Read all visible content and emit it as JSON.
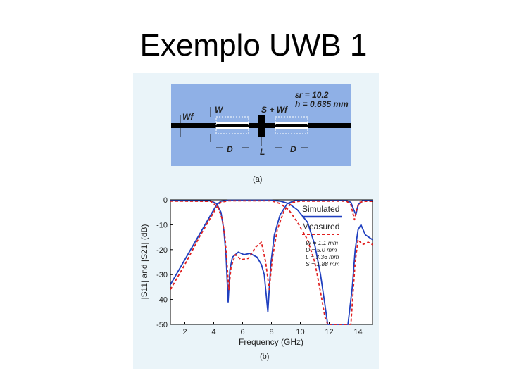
{
  "slide": {
    "title": "Exemplo UWB 1"
  },
  "figure": {
    "part_a": {
      "caption": "(a)",
      "substrate_er": "εr = 10.2",
      "substrate_h": "h = 0.635 mm",
      "labels": {
        "wf": "Wf",
        "w": "W",
        "s_wf": "S + Wf",
        "d_left": "D",
        "l": "L",
        "d_right": "D"
      },
      "colors": {
        "substrate": "#8fb0e6",
        "line": "#000000"
      }
    },
    "part_b": {
      "caption": "(b)",
      "legend_simulated": "Simulated",
      "legend_measured": "Measured",
      "params": [
        "W = 1.1 mm",
        "D = 5.0 mm",
        "L = 3.36 mm",
        "S = 1.88 mm"
      ],
      "colors": {
        "simulated": "#1f3fbf",
        "measured": "#e02020"
      }
    }
  },
  "chart_data": {
    "type": "line",
    "title": "",
    "xlabel": "Frequency (GHz)",
    "ylabel": "|S11| and |S21| (dB)",
    "xlim": [
      1,
      15
    ],
    "ylim": [
      -50,
      0
    ],
    "xticks": [
      2,
      4,
      6,
      8,
      10,
      12,
      14
    ],
    "yticks": [
      0,
      -10,
      -20,
      -30,
      -40,
      -50
    ],
    "legend": "top-right",
    "series": [
      {
        "name": "Simulated",
        "style": "solid",
        "color": "#1f3fbf",
        "curves": [
          [
            [
              1.0,
              -34
            ],
            [
              2.0,
              -24
            ],
            [
              3.0,
              -14
            ],
            [
              3.8,
              -6
            ],
            [
              4.2,
              -2
            ],
            [
              4.5,
              -0.5
            ],
            [
              5.0,
              -0.2
            ],
            [
              8.0,
              -0.2
            ],
            [
              8.6,
              -0.5
            ],
            [
              9.2,
              -1.5
            ],
            [
              9.8,
              -4
            ],
            [
              10.5,
              -9
            ],
            [
              11.0,
              -18
            ],
            [
              11.4,
              -30
            ],
            [
              11.7,
              -42
            ],
            [
              11.9,
              -50
            ],
            [
              13.3,
              -50
            ],
            [
              13.6,
              -35
            ],
            [
              13.8,
              -20
            ],
            [
              14.0,
              -12
            ],
            [
              14.2,
              -10
            ],
            [
              14.5,
              -14
            ],
            [
              15.0,
              -16
            ]
          ],
          [
            [
              1.0,
              -0.3
            ],
            [
              3.8,
              -0.4
            ],
            [
              4.2,
              -1.5
            ],
            [
              4.5,
              -5
            ],
            [
              4.7,
              -12
            ],
            [
              4.85,
              -22
            ],
            [
              5.0,
              -41
            ],
            [
              5.12,
              -28
            ],
            [
              5.3,
              -23
            ],
            [
              5.7,
              -21
            ],
            [
              6.1,
              -22
            ],
            [
              6.5,
              -21.5
            ],
            [
              7.0,
              -23
            ],
            [
              7.3,
              -26
            ],
            [
              7.5,
              -30
            ],
            [
              7.75,
              -45
            ],
            [
              7.95,
              -26
            ],
            [
              8.2,
              -14
            ],
            [
              8.6,
              -6
            ],
            [
              9.1,
              -1.5
            ],
            [
              9.6,
              -0.3
            ],
            [
              13.2,
              -0.3
            ],
            [
              13.5,
              -1
            ],
            [
              13.7,
              -4
            ],
            [
              13.85,
              -6
            ],
            [
              14.0,
              -2
            ],
            [
              14.3,
              -0.3
            ],
            [
              15.0,
              -0.3
            ]
          ]
        ]
      },
      {
        "name": "Measured",
        "style": "dashed",
        "color": "#e02020",
        "curves": [
          [
            [
              1.0,
              -36
            ],
            [
              2.0,
              -26
            ],
            [
              3.0,
              -15
            ],
            [
              3.8,
              -7
            ],
            [
              4.2,
              -3
            ],
            [
              4.5,
              -1
            ],
            [
              5.0,
              -0.4
            ],
            [
              8.0,
              -0.4
            ],
            [
              8.6,
              -1.5
            ],
            [
              9.2,
              -4
            ],
            [
              9.8,
              -9
            ],
            [
              10.5,
              -16
            ],
            [
              11.0,
              -25
            ],
            [
              11.4,
              -37
            ],
            [
              11.7,
              -47
            ],
            [
              11.9,
              -50
            ],
            [
              13.5,
              -50
            ],
            [
              13.8,
              -25
            ],
            [
              14.0,
              -16
            ],
            [
              14.3,
              -18
            ],
            [
              14.7,
              -17
            ],
            [
              15.0,
              -18
            ]
          ],
          [
            [
              1.0,
              -0.5
            ],
            [
              3.8,
              -0.6
            ],
            [
              4.3,
              -3
            ],
            [
              4.6,
              -8
            ],
            [
              4.8,
              -16
            ],
            [
              4.95,
              -28
            ],
            [
              5.05,
              -36
            ],
            [
              5.2,
              -27
            ],
            [
              5.5,
              -22
            ],
            [
              5.9,
              -24
            ],
            [
              6.4,
              -23.5
            ],
            [
              6.9,
              -19
            ],
            [
              7.3,
              -17
            ],
            [
              7.6,
              -25
            ],
            [
              7.85,
              -36
            ],
            [
              8.05,
              -24
            ],
            [
              8.4,
              -12
            ],
            [
              8.9,
              -4
            ],
            [
              9.5,
              -1
            ],
            [
              10.0,
              -0.5
            ],
            [
              13.2,
              -0.5
            ],
            [
              13.5,
              -2
            ],
            [
              13.75,
              -8
            ],
            [
              13.9,
              -4
            ],
            [
              14.1,
              -1
            ],
            [
              14.5,
              -0.6
            ],
            [
              15.0,
              -0.6
            ]
          ]
        ]
      }
    ]
  }
}
